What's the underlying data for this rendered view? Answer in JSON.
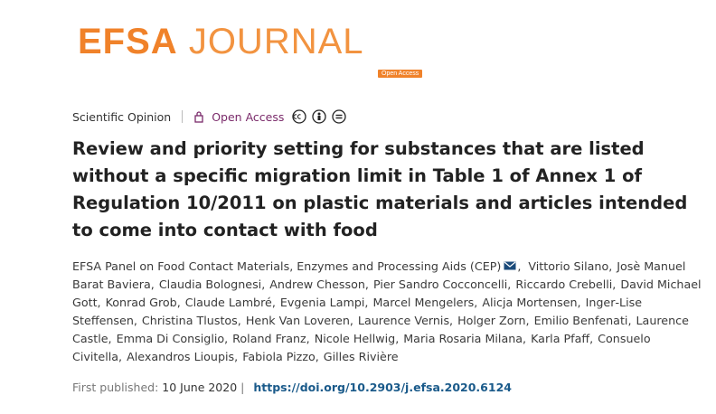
{
  "header": {
    "logo_bold": "EFSA",
    "logo_light": "JOURNAL",
    "logo_badge": "Open Access"
  },
  "meta": {
    "article_type": "Scientific Opinion",
    "access": "Open Access"
  },
  "title": "Review and priority setting for substances that are listed without a specific migration limit in Table 1 of Annex 1 of Regulation 10/2011 on plastic materials and articles intended to come into contact with food",
  "authors": [
    "EFSA Panel on Food Contact Materials, Enzymes and Processing Aids (CEP)",
    ",",
    "Vittorio Silano,",
    "Josè Manuel Barat Baviera,",
    "Claudia Bolognesi,",
    "Andrew Chesson,",
    "Pier Sandro Cocconcelli,",
    "Riccardo Crebelli,",
    "David Michael Gott,",
    "Konrad Grob,",
    "Claude Lambré,",
    "Evgenia Lampi,",
    "Marcel Mengelers,",
    "Alicja Mortensen,",
    "Inger‐Lise Steffensen,",
    "Christina Tlustos,",
    "Henk Van Loveren,",
    "Laurence Vernis,",
    "Holger Zorn,",
    "Emilio Benfenati,",
    "Laurence Castle,",
    "Emma Di Consiglio,",
    "Roland Franz,",
    "Nicole Hellwig,",
    "Maria Rosaria Milana,",
    "Karla Pfaff,",
    "Consuelo Civitella,",
    "Alexandros Lioupis,",
    "Fabiola Pizzo,",
    "Gilles Rivière"
  ],
  "publication": {
    "label": "First published:",
    "date": "10 June 2020",
    "separator": "|",
    "doi": "https://doi.org/10.2903/j.efsa.2020.6124"
  }
}
